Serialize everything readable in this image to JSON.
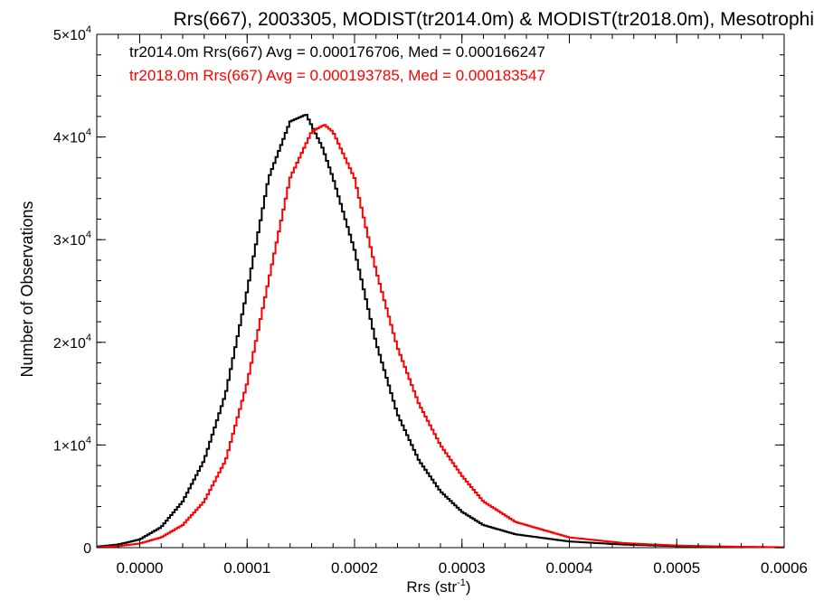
{
  "chart_data": {
    "type": "line",
    "title": "Rrs(667), 2003305, MODIST(tr2014.0m) & MODIST(tr2018.0m), Mesotrophi",
    "xlabel": "Rrs (str",
    "xlabel_sup": "-1",
    "xlabel_end": ")",
    "ylabel": "Number of Observations",
    "xlim": [
      -4e-05,
      0.0006
    ],
    "ylim": [
      0,
      50000
    ],
    "grid": false,
    "x_ticks": [
      {
        "value": 0.0,
        "label": "0.0000"
      },
      {
        "value": 0.0001,
        "label": "0.0001"
      },
      {
        "value": 0.0002,
        "label": "0.0002"
      },
      {
        "value": 0.0003,
        "label": "0.0003"
      },
      {
        "value": 0.0004,
        "label": "0.0004"
      },
      {
        "value": 0.0005,
        "label": "0.0005"
      },
      {
        "value": 0.0006,
        "label": "0.0006"
      }
    ],
    "y_ticks": [
      {
        "value": 0,
        "mant": "0",
        "exp": ""
      },
      {
        "value": 10000,
        "mant": "1×10",
        "exp": "4"
      },
      {
        "value": 20000,
        "mant": "2×10",
        "exp": "4"
      },
      {
        "value": 30000,
        "mant": "3×10",
        "exp": "4"
      },
      {
        "value": 40000,
        "mant": "4×10",
        "exp": "4"
      },
      {
        "value": 50000,
        "mant": "5×10",
        "exp": "4"
      }
    ],
    "annotations": [
      {
        "text": "tr2014.0m Rrs(667) Avg = 0.000176706, Med = 0.000166247",
        "color": "#000000"
      },
      {
        "text": "tr2018.0m Rrs(667) Avg = 0.000193785, Med = 0.000183547",
        "color": "#ff0000"
      }
    ],
    "series": [
      {
        "color": "#000000",
        "x": [
          -4e-05,
          -2e-05,
          0.0,
          2e-05,
          4e-05,
          6e-05,
          8e-05,
          0.0001,
          0.00012,
          0.00014,
          0.000155,
          0.00017,
          0.00018,
          0.0002,
          0.00022,
          0.00024,
          0.00026,
          0.00028,
          0.0003,
          0.00032,
          0.00035,
          0.0004,
          0.00045,
          0.0005,
          0.00055,
          0.0006
        ],
        "y": [
          100,
          300,
          800,
          2000,
          4500,
          8500,
          15000,
          25000,
          36000,
          41500,
          42200,
          39000,
          36000,
          29000,
          20000,
          13000,
          8500,
          5500,
          3500,
          2200,
          1300,
          600,
          300,
          150,
          80,
          30
        ]
      },
      {
        "color": "#ff0000",
        "x": [
          -4e-05,
          -2e-05,
          0.0,
          2e-05,
          4e-05,
          6e-05,
          8e-05,
          0.0001,
          0.00012,
          0.00014,
          0.00016,
          0.000172,
          0.00018,
          0.0002,
          0.00022,
          0.00024,
          0.00026,
          0.00028,
          0.0003,
          0.00032,
          0.00035,
          0.0004,
          0.00045,
          0.0005,
          0.00055,
          0.0006
        ],
        "y": [
          50,
          150,
          400,
          1000,
          2200,
          4500,
          8500,
          16000,
          26000,
          36000,
          40500,
          41200,
          40500,
          36000,
          27000,
          19500,
          14000,
          10000,
          7000,
          4500,
          2500,
          1000,
          450,
          200,
          100,
          40
        ]
      }
    ]
  }
}
